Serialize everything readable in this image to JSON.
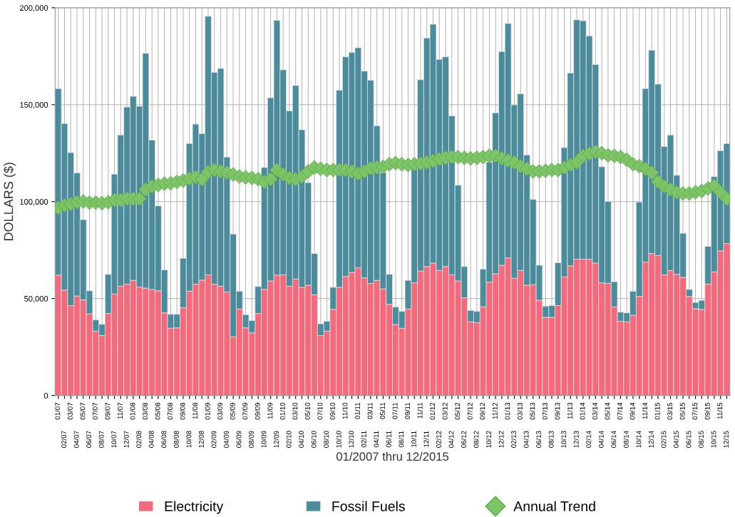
{
  "chart_data": {
    "type": "bar",
    "stacked": true,
    "xlabel": "01/2007 thru 12/2015",
    "ylabel": "DOLLARS ($)",
    "categories": [
      "01/07",
      "02/07",
      "03/07",
      "04/07",
      "05/07",
      "06/07",
      "07/07",
      "08/07",
      "09/07",
      "10/07",
      "11/07",
      "12/07",
      "01/08",
      "02/08",
      "03/08",
      "04/08",
      "05/08",
      "06/08",
      "07/08",
      "08/08",
      "09/08",
      "10/08",
      "11/08",
      "12/08",
      "01/09",
      "02/09",
      "03/09",
      "04/09",
      "05/09",
      "06/09",
      "07/09",
      "08/09",
      "09/09",
      "10/09",
      "11/09",
      "12/09",
      "01/10",
      "02/10",
      "03/10",
      "04/10",
      "05/10",
      "06/10",
      "07/10",
      "08/10",
      "09/10",
      "10/10",
      "11/10",
      "12/10",
      "01/11",
      "02/11",
      "03/11",
      "04/11",
      "05/11",
      "06/11",
      "07/11",
      "08/11",
      "09/11",
      "10/11",
      "11/11",
      "12/11",
      "01/12",
      "02/12",
      "03/12",
      "04/12",
      "05/12",
      "06/12",
      "07/12",
      "08/12",
      "09/12",
      "10/12",
      "11/12",
      "12/12",
      "01/13",
      "02/13",
      "03/13",
      "04/13",
      "05/13",
      "06/13",
      "07/13",
      "08/13",
      "09/13",
      "10/13",
      "11/13",
      "12/13",
      "01/14",
      "02/14",
      "03/14",
      "04/14",
      "05/14",
      "06/14",
      "07/14",
      "08/14",
      "09/14",
      "10/14",
      "11/14",
      "12/14",
      "01/15",
      "02/15",
      "03/15",
      "04/15",
      "05/15",
      "06/15",
      "07/15",
      "08/15",
      "09/15",
      "10/15",
      "11/15",
      "12/15"
    ],
    "series": [
      {
        "name": "Electricity",
        "color": "#f4697b",
        "values": [
          62100,
          54400,
          46400,
          51300,
          49300,
          42100,
          33200,
          30900,
          42300,
          52400,
          56400,
          57400,
          59400,
          56000,
          55400,
          54700,
          54000,
          42600,
          34700,
          34900,
          45300,
          53800,
          57400,
          59500,
          62200,
          57400,
          56400,
          53400,
          30200,
          44600,
          34900,
          32300,
          42300,
          54800,
          59100,
          62100,
          62200,
          56400,
          60100,
          55800,
          56900,
          52000,
          30900,
          33200,
          44400,
          55800,
          61400,
          63500,
          65900,
          60700,
          57800,
          59400,
          55000,
          47000,
          36600,
          34700,
          44600,
          58100,
          64200,
          66500,
          68300,
          64500,
          66500,
          62200,
          59100,
          50400,
          38000,
          37600,
          45700,
          58500,
          62800,
          67200,
          71000,
          60500,
          64500,
          56900,
          57100,
          49100,
          40300,
          40300,
          46400,
          61200,
          66900,
          70300,
          70300,
          70300,
          68300,
          58100,
          57800,
          45700,
          38300,
          38000,
          41400,
          51100,
          68800,
          73200,
          72200,
          62200,
          64500,
          62500,
          60900,
          51100,
          44800,
          44400,
          57500,
          63800,
          74600,
          78400
        ]
      },
      {
        "name": "Fossil Fuels",
        "color": "#4a8b9c",
        "values": [
          96200,
          85900,
          78900,
          63500,
          41400,
          11900,
          5800,
          5800,
          20200,
          61800,
          78000,
          91400,
          94900,
          93200,
          121100,
          77000,
          43800,
          22200,
          7200,
          7000,
          25500,
          76200,
          82600,
          75600,
          133400,
          109300,
          112300,
          69600,
          53100,
          9200,
          6800,
          6400,
          13900,
          62800,
          94500,
          131400,
          105800,
          90400,
          99800,
          81300,
          52900,
          21200,
          6100,
          5100,
          11400,
          101700,
          113300,
          113500,
          113500,
          106600,
          104800,
          79700,
          60000,
          15500,
          9100,
          8700,
          14800,
          58800,
          98700,
          117900,
          123200,
          108900,
          108200,
          82000,
          49400,
          16100,
          5900,
          5800,
          19500,
          61800,
          83000,
          110200,
          120900,
          89400,
          91100,
          67200,
          44100,
          18100,
          5800,
          6100,
          22100,
          66700,
          99400,
          123500,
          123000,
          115200,
          102400,
          59900,
          42300,
          13000,
          4700,
          4600,
          12400,
          48600,
          89500,
          104900,
          88400,
          66200,
          69900,
          51100,
          22800,
          3600,
          3200,
          4700,
          19400,
          49100,
          51700,
          51600
        ]
      },
      {
        "name": "Annual Trend",
        "type": "scatter",
        "marker": "diamond",
        "color": "#7cc465",
        "values": [
          96800,
          98100,
          98800,
          99700,
          100100,
          99500,
          99500,
          99200,
          99700,
          100800,
          100800,
          101500,
          101500,
          101500,
          106200,
          107800,
          108600,
          109300,
          109500,
          110200,
          110900,
          111800,
          112600,
          111600,
          115300,
          116300,
          115600,
          114900,
          114000,
          112900,
          112500,
          112200,
          111600,
          110200,
          111600,
          116300,
          114000,
          112200,
          111600,
          112900,
          115600,
          117600,
          116900,
          116300,
          116300,
          116300,
          116300,
          115500,
          114500,
          115600,
          117200,
          117600,
          118000,
          119300,
          119900,
          119300,
          118900,
          119300,
          119600,
          120300,
          121000,
          122000,
          122600,
          123000,
          123000,
          122600,
          122300,
          122600,
          123000,
          123600,
          123600,
          122300,
          121200,
          120300,
          118300,
          116900,
          115600,
          115600,
          115900,
          116300,
          116300,
          117600,
          118900,
          120300,
          123600,
          124700,
          125700,
          125000,
          123900,
          123600,
          123000,
          121600,
          119300,
          118300,
          116900,
          114900,
          110200,
          107800,
          106200,
          104800,
          104200,
          104200,
          104800,
          105500,
          106800,
          108200,
          104800,
          101500
        ]
      }
    ],
    "ylim": [
      0,
      200000
    ],
    "yticks": [
      0,
      {
        "value": 50000,
        "label": "50,000"
      },
      {
        "value": 100000,
        "label": "100,000"
      },
      {
        "value": 150000,
        "label": "150,000"
      },
      {
        "value": 200000,
        "label": "200,000"
      }
    ],
    "grid": true,
    "legend": "bottom"
  }
}
